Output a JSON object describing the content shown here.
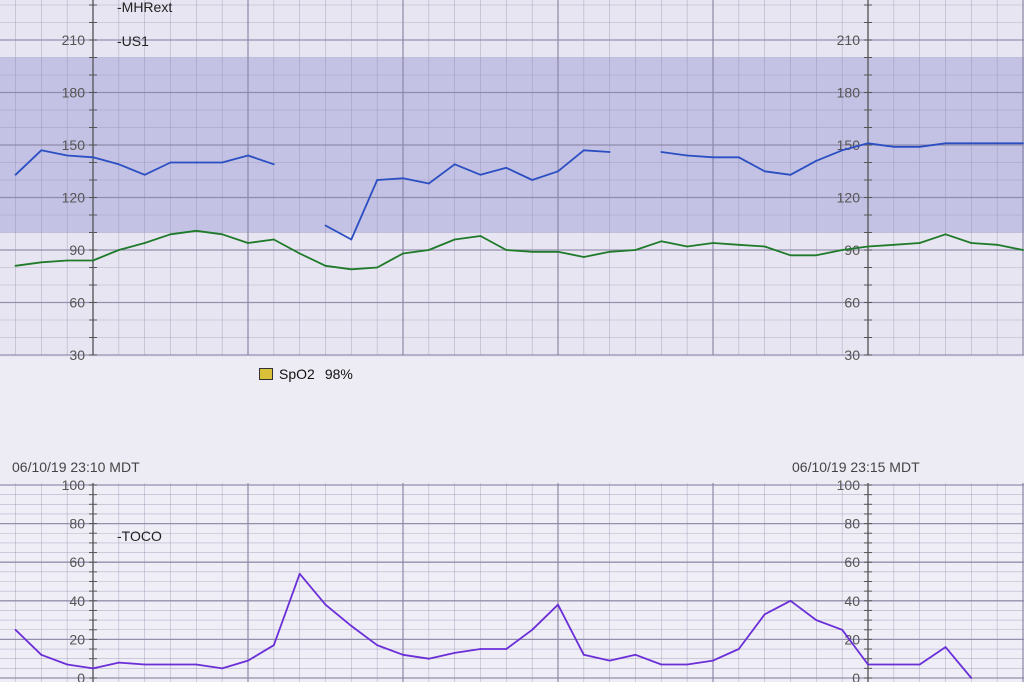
{
  "colors": {
    "fhr_line": "#2b4fc2",
    "mhr_line": "#1f7a2a",
    "toco_line": "#6a2fd8",
    "normal_band": "#bcbce2",
    "panel_bg": "#e7e5f1",
    "grid": "#8a86a6"
  },
  "spo2": {
    "icon": "battery-folder-icon",
    "label": "SpO2",
    "value": "98%"
  },
  "timestamps": {
    "left": "06/10/19 23:10 MDT",
    "right": "06/10/19 23:15 MDT"
  },
  "chart_data": [
    {
      "type": "line",
      "title": "",
      "xlabel": "",
      "ylabel": "",
      "ylim": [
        30,
        210
      ],
      "yticks": [
        "30",
        "60",
        "90",
        "120",
        "150",
        "180",
        "210"
      ],
      "shaded_band": [
        100,
        200
      ],
      "grid": true,
      "legend": [
        "-MHRext",
        "-US1"
      ],
      "x": [
        "23:09:30",
        "23:09:40",
        "23:09:50",
        "23:10:00",
        "23:10:10",
        "23:10:20",
        "23:10:30",
        "23:10:40",
        "23:10:50",
        "23:11:00",
        "23:11:10",
        "23:11:20",
        "23:11:30",
        "23:11:40",
        "23:11:50",
        "23:12:00",
        "23:12:10",
        "23:12:20",
        "23:12:30",
        "23:12:40",
        "23:12:50",
        "23:13:00",
        "23:13:10",
        "23:13:20",
        "23:13:30",
        "23:13:40",
        "23:13:50",
        "23:14:00",
        "23:14:10",
        "23:14:20",
        "23:14:30",
        "23:14:40",
        "23:14:50",
        "23:15:00",
        "23:15:10",
        "23:15:20",
        "23:15:30",
        "23:15:40",
        "23:15:50",
        "23:16:00"
      ],
      "series": [
        {
          "name": "-US1",
          "values": [
            133,
            147,
            144,
            143,
            139,
            133,
            140,
            140,
            140,
            144,
            139,
            null,
            104,
            96,
            130,
            131,
            128,
            139,
            133,
            137,
            130,
            135,
            147,
            146,
            null,
            146,
            144,
            143,
            143,
            135,
            133,
            141,
            147,
            151,
            149,
            149,
            151,
            151,
            151,
            151
          ]
        },
        {
          "name": "-MHRext",
          "values": [
            81,
            83,
            84,
            84,
            90,
            94,
            99,
            101,
            99,
            94,
            96,
            88,
            81,
            79,
            80,
            88,
            90,
            96,
            98,
            90,
            89,
            89,
            86,
            89,
            90,
            95,
            92,
            94,
            93,
            92,
            87,
            87,
            90,
            92,
            93,
            94,
            99,
            94,
            93,
            90
          ]
        }
      ]
    },
    {
      "type": "line",
      "title": "",
      "xlabel": "",
      "ylabel": "",
      "ylim": [
        0,
        100
      ],
      "yticks": [
        "0",
        "20",
        "40",
        "60",
        "80",
        "100"
      ],
      "grid": true,
      "legend": [
        "-TOCO"
      ],
      "x": [
        "23:09:30",
        "23:09:40",
        "23:09:50",
        "23:10:00",
        "23:10:10",
        "23:10:20",
        "23:10:30",
        "23:10:40",
        "23:10:50",
        "23:11:00",
        "23:11:10",
        "23:11:20",
        "23:11:30",
        "23:11:40",
        "23:11:50",
        "23:12:00",
        "23:12:10",
        "23:12:20",
        "23:12:30",
        "23:12:40",
        "23:12:50",
        "23:13:00",
        "23:13:10",
        "23:13:20",
        "23:13:30",
        "23:13:40",
        "23:13:50",
        "23:14:00",
        "23:14:10",
        "23:14:20",
        "23:14:30",
        "23:14:40",
        "23:14:50",
        "23:15:00",
        "23:15:10",
        "23:15:20",
        "23:15:30",
        "23:15:40",
        "23:15:50",
        "23:16:00"
      ],
      "series": [
        {
          "name": "-TOCO",
          "values": [
            25,
            12,
            7,
            5,
            8,
            7,
            7,
            7,
            5,
            9,
            17,
            54,
            38,
            27,
            17,
            12,
            10,
            13,
            15,
            15,
            25,
            38,
            12,
            9,
            12,
            7,
            7,
            9,
            15,
            33,
            40,
            30,
            25,
            7,
            7,
            7,
            16,
            0,
            null,
            null
          ]
        }
      ]
    }
  ]
}
